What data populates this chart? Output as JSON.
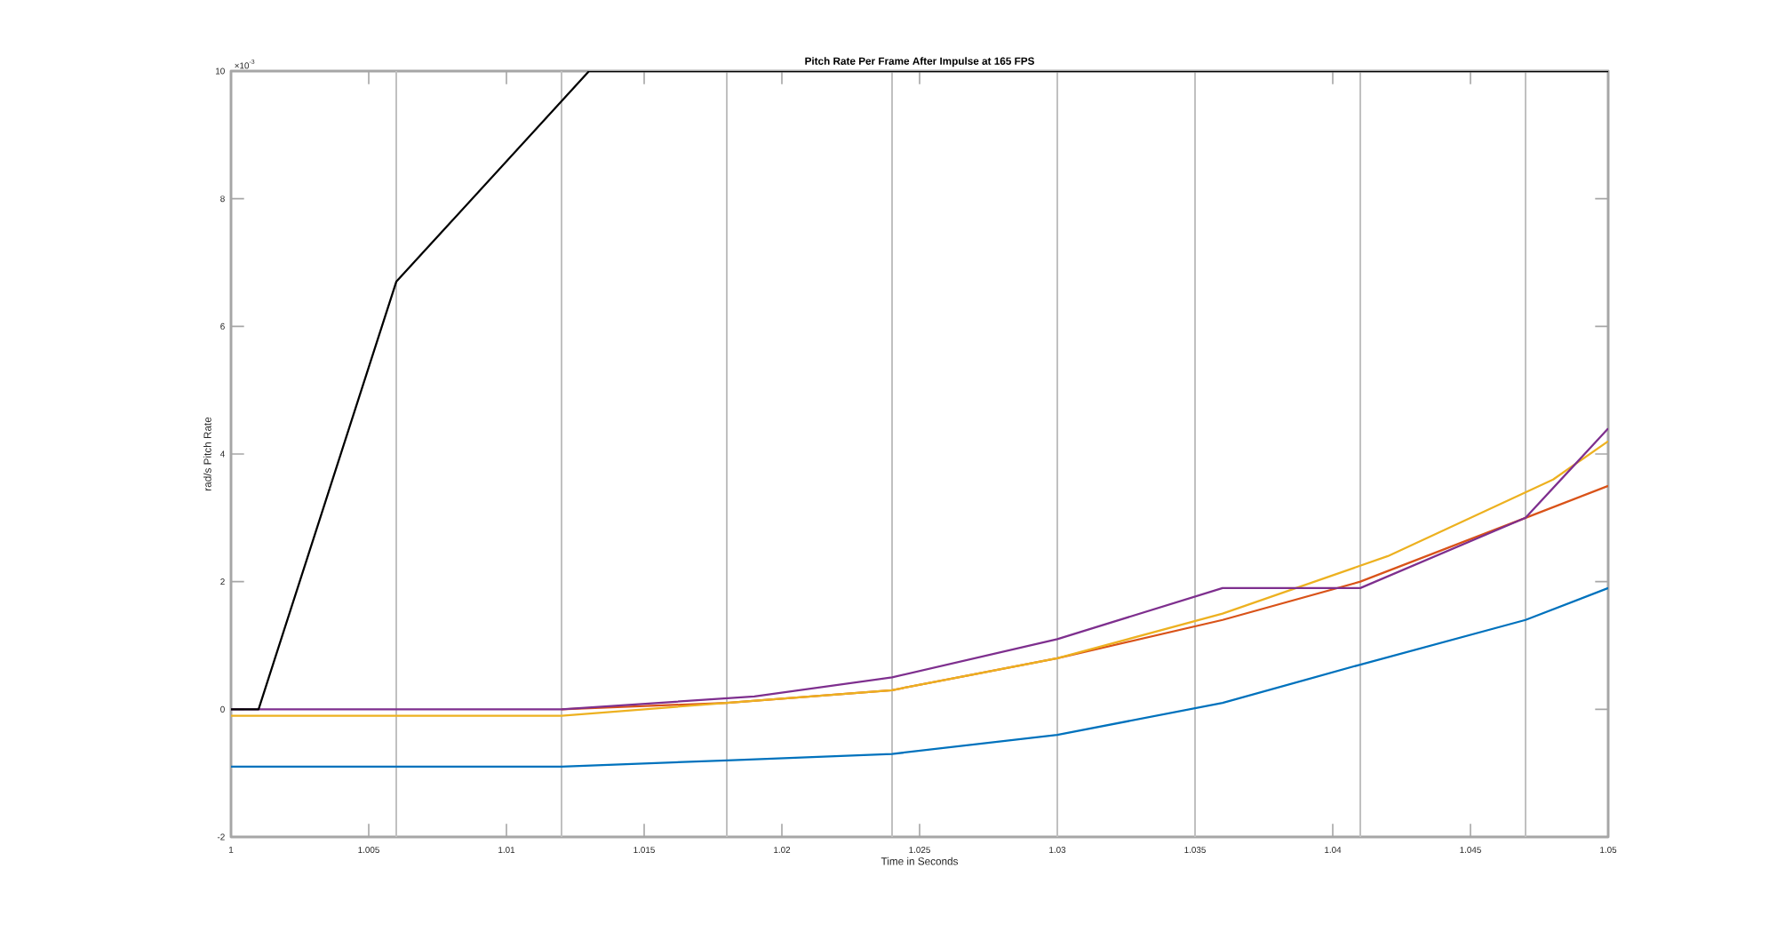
{
  "chart_data": {
    "type": "line",
    "title": "Pitch Rate Per Frame After Impulse at 165 FPS",
    "xlabel": "Time in Seconds",
    "ylabel": "rad/s Pitch Rate",
    "annotations": [
      "×10$^{-3}$"
    ],
    "xlim": [
      1,
      1.05
    ],
    "ylim": [
      -2,
      10
    ],
    "xticks": [
      1,
      1.005,
      1.01,
      1.015,
      1.02,
      1.025,
      1.03,
      1.035,
      1.04,
      1.045,
      1.05
    ],
    "yticks": [
      -2,
      0,
      2,
      4,
      6,
      8,
      10
    ],
    "series": [
      {
        "color": "#0072bd",
        "x": [
          1,
          1.012,
          1.018,
          1.024,
          1.03,
          1.036,
          1.041,
          1.047,
          1.05
        ],
        "values": [
          -0.9,
          -0.9,
          -0.8,
          -0.7,
          -0.4,
          0.1,
          0.7,
          1.4,
          1.9
        ]
      },
      {
        "color": "#d95319",
        "x": [
          1.012,
          1.018,
          1.024,
          1.03,
          1.036,
          1.041,
          1.047,
          1.05
        ],
        "values": [
          0,
          0.1,
          0.3,
          0.8,
          1.4,
          2.0,
          3.0,
          3.5
        ]
      },
      {
        "color": "#edb120",
        "x": [
          1,
          1.012,
          1.018,
          1.024,
          1.03,
          1.036,
          1.042,
          1.048,
          1.05
        ],
        "values": [
          -0.1,
          -0.1,
          0.1,
          0.3,
          0.8,
          1.5,
          2.4,
          3.6,
          4.2
        ]
      },
      {
        "color": "#7e2f8e",
        "x": [
          1,
          1.012,
          1.019,
          1.024,
          1.03,
          1.036,
          1.041,
          1.047,
          1.05
        ],
        "values": [
          0,
          0,
          0.2,
          0.5,
          1.1,
          1.9,
          1.9,
          3.0,
          4.4
        ]
      },
      {
        "color": "#000000",
        "x": [
          1,
          1.001,
          1.006,
          1.013,
          1.05
        ],
        "values": [
          0,
          0,
          6.7,
          10,
          10
        ]
      }
    ],
    "ref_lines": [
      {
        "axis": "x",
        "value": 1.006,
        "color": "#c0c0c0"
      },
      {
        "axis": "x",
        "value": 1.012,
        "color": "#c0c0c0"
      },
      {
        "axis": "x",
        "value": 1.018,
        "color": "#c0c0c0"
      },
      {
        "axis": "x",
        "value": 1.024,
        "color": "#c0c0c0"
      },
      {
        "axis": "x",
        "value": 1.03,
        "color": "#c0c0c0"
      },
      {
        "axis": "x",
        "value": 1.035,
        "color": "#c0c0c0"
      },
      {
        "axis": "x",
        "value": 1.041,
        "color": "#c0c0c0"
      },
      {
        "axis": "x",
        "value": 1.047,
        "color": "#c0c0c0"
      }
    ]
  }
}
